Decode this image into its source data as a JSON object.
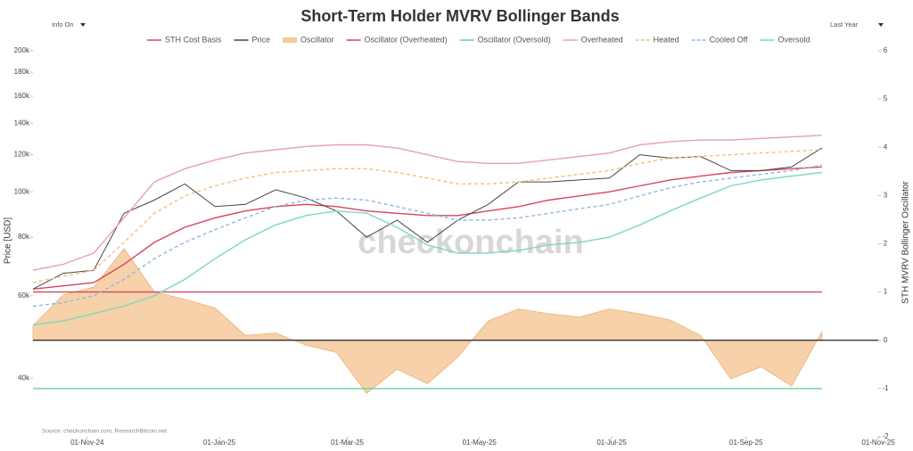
{
  "ui": {
    "left_dropdown": "Info On",
    "right_dropdown": "Last Year"
  },
  "chart_data": {
    "type": "line",
    "title": "Short-Term Holder MVRV Bollinger Bands",
    "y_label": "Price [USD]",
    "y2_label": "STH MVRV Bollinger Oscillator",
    "watermark": "checkonchain",
    "source": "Source: checkonchain.com, ResearchBitcoin.net",
    "ylog": true,
    "ylim": [
      30000,
      200000
    ],
    "yticks": [
      {
        "value": 40000,
        "label": "40k"
      },
      {
        "value": 60000,
        "label": "60k"
      },
      {
        "value": 80000,
        "label": "80k"
      },
      {
        "value": 100000,
        "label": "100k"
      },
      {
        "value": 120000,
        "label": "120k"
      },
      {
        "value": 140000,
        "label": "140k"
      },
      {
        "value": 160000,
        "label": "160k"
      },
      {
        "value": 180000,
        "label": "180k"
      },
      {
        "value": 200000,
        "label": "200k"
      }
    ],
    "y2lim": [
      -2,
      6
    ],
    "y2ticks": [
      -2,
      -1,
      0,
      1,
      2,
      3,
      4,
      5,
      6
    ],
    "xlim": [
      "2024-10-07",
      "2025-11-01"
    ],
    "xticks": [
      {
        "value": "2024-11-01",
        "label": "01-Nov-24"
      },
      {
        "value": "2025-01-01",
        "label": "01-Jan-25"
      },
      {
        "value": "2025-03-01",
        "label": "01-Mar-25"
      },
      {
        "value": "2025-05-01",
        "label": "01-May-25"
      },
      {
        "value": "2025-07-01",
        "label": "01-Jul-25"
      },
      {
        "value": "2025-09-01",
        "label": "01-Sep-25"
      },
      {
        "value": "2025-11-01",
        "label": "01-Nov-25"
      }
    ],
    "x": [
      "2024-10-07",
      "2024-10-21",
      "2024-11-04",
      "2024-11-18",
      "2024-12-02",
      "2024-12-16",
      "2024-12-30",
      "2025-01-13",
      "2025-01-27",
      "2025-02-10",
      "2025-02-24",
      "2025-03-10",
      "2025-03-24",
      "2025-04-07",
      "2025-04-21",
      "2025-05-05",
      "2025-05-19",
      "2025-06-02",
      "2025-06-16",
      "2025-06-30",
      "2025-07-14",
      "2025-07-28",
      "2025-08-11",
      "2025-08-25",
      "2025-09-08",
      "2025-09-22",
      "2025-10-06"
    ],
    "series": [
      {
        "name": "STH Cost Basis",
        "color": "#d8455c",
        "values": [
          62000,
          63000,
          64000,
          70000,
          78000,
          84000,
          88000,
          91000,
          93000,
          94000,
          93000,
          91000,
          90000,
          89000,
          89000,
          91000,
          93000,
          96000,
          98000,
          100000,
          103000,
          106000,
          108000,
          110000,
          111000,
          112000,
          113000
        ]
      },
      {
        "name": "Price",
        "color": "#444444",
        "values": [
          62000,
          67000,
          68000,
          90000,
          96000,
          104000,
          93000,
          94000,
          101000,
          97000,
          91000,
          80000,
          87000,
          78000,
          87000,
          94000,
          105000,
          105000,
          106000,
          107000,
          120000,
          118000,
          119000,
          111000,
          111000,
          113000,
          124000
        ]
      },
      {
        "name": "Oscillator",
        "color": "#f5c99a",
        "axis": "y2",
        "style": "area",
        "values": [
          0.3,
          0.94,
          1.1,
          1.9,
          1.0,
          0.85,
          0.67,
          0.1,
          0.15,
          -0.1,
          -0.25,
          -1.1,
          -0.6,
          -0.9,
          -0.35,
          0.4,
          0.65,
          0.55,
          0.48,
          0.65,
          0.55,
          0.42,
          0.1,
          -0.8,
          -0.55,
          -0.95,
          0.17
        ]
      },
      {
        "name": "Oscillator (Overheated)",
        "color": "#d8455c",
        "axis": "y2",
        "values": [
          1,
          1,
          1,
          1,
          1,
          1,
          1,
          1,
          1,
          1,
          1,
          1,
          1,
          1,
          1,
          1,
          1,
          1,
          1,
          1,
          1,
          1,
          1,
          1,
          1,
          1,
          1
        ]
      },
      {
        "name": "Oscillator (Oversold)",
        "color": "#6fcf97",
        "axis": "y2",
        "values": [
          -1,
          -1,
          -1,
          -1,
          -1,
          -1,
          -1,
          -1,
          -1,
          -1,
          -1,
          -1,
          -1,
          -1,
          -1,
          -1,
          -1,
          -1,
          -1,
          -1,
          -1,
          -1,
          -1,
          -1,
          -1,
          -1,
          -1
        ]
      },
      {
        "name": "Overheated",
        "color": "#e8a0b4",
        "values": [
          68000,
          70000,
          74000,
          88000,
          105000,
          112000,
          117000,
          121000,
          123000,
          125000,
          126000,
          126000,
          124000,
          120000,
          116000,
          115000,
          115000,
          117000,
          119000,
          121000,
          126000,
          128000,
          129000,
          129000,
          130000,
          131000,
          132000
        ]
      },
      {
        "name": "Heated",
        "color": "#f0c080",
        "dash": true,
        "values": [
          64000,
          66000,
          68000,
          78000,
          90000,
          98000,
          103000,
          107000,
          110000,
          111000,
          112000,
          112000,
          110000,
          107000,
          104000,
          104000,
          105000,
          107000,
          109000,
          111000,
          115000,
          118000,
          119000,
          120000,
          121000,
          122000,
          123000
        ]
      },
      {
        "name": "Cooled Off",
        "color": "#8fb8e0",
        "dash": true,
        "values": [
          57000,
          58000,
          60000,
          65000,
          72000,
          78000,
          83000,
          88000,
          93000,
          96000,
          97000,
          96000,
          93000,
          90000,
          87000,
          87000,
          88000,
          90000,
          92000,
          94000,
          98000,
          102000,
          105000,
          107000,
          109000,
          111000,
          114000
        ]
      },
      {
        "name": "Oversold",
        "color": "#7ed6c0",
        "values": [
          52000,
          53000,
          55000,
          57000,
          60000,
          65000,
          72000,
          79000,
          85000,
          89000,
          91000,
          90000,
          84000,
          77000,
          74000,
          74000,
          75000,
          77000,
          78000,
          80000,
          85000,
          91000,
          97000,
          103000,
          106000,
          108000,
          110000
        ]
      }
    ]
  }
}
